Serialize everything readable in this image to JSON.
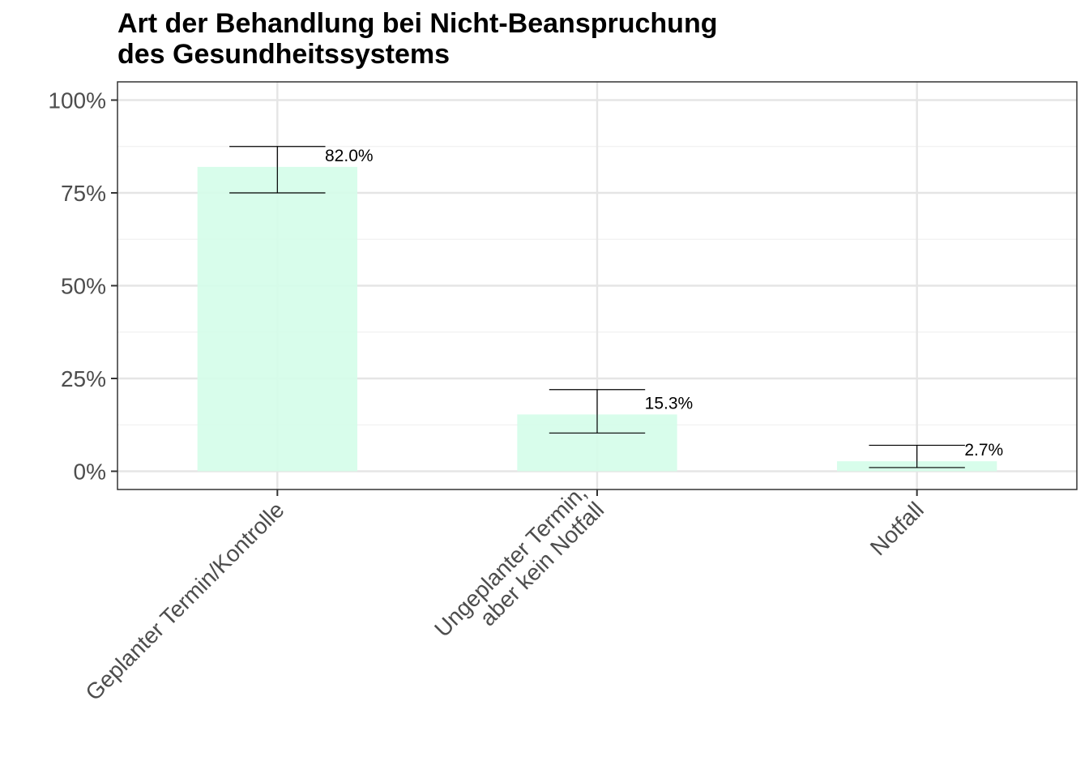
{
  "chart_data": {
    "type": "bar",
    "title_lines": [
      "Art der Behandlung bei Nicht-Beanspruchung",
      "des Gesundheitssystems"
    ],
    "categories": [
      [
        "Geplanter Termin/Kontrolle"
      ],
      [
        "Ungeplanter Termin,",
        "aber kein Notfall"
      ],
      [
        "Notfall"
      ]
    ],
    "values": [
      82.0,
      15.3,
      2.7
    ],
    "error_low": [
      75.0,
      10.3,
      1.0
    ],
    "error_high": [
      87.5,
      22.0,
      7.0
    ],
    "data_labels": [
      "82.0%",
      "15.3%",
      "2.7%"
    ],
    "y_ticks": [
      0,
      25,
      50,
      75,
      100
    ],
    "y_tick_labels": [
      "0%",
      "25%",
      "50%",
      "75%",
      "100%"
    ],
    "ylim": [
      -5,
      105
    ],
    "xlabel": "",
    "ylabel": "",
    "grid": true,
    "legend": "none",
    "colors": {
      "bar_fill": "#d4fde9",
      "grid_major": "#e5e5e5",
      "grid_minor": "#f0f0f0",
      "panel_border": "#333333",
      "error_bar": "#000000",
      "tick_text": "#4d4d4d"
    }
  }
}
